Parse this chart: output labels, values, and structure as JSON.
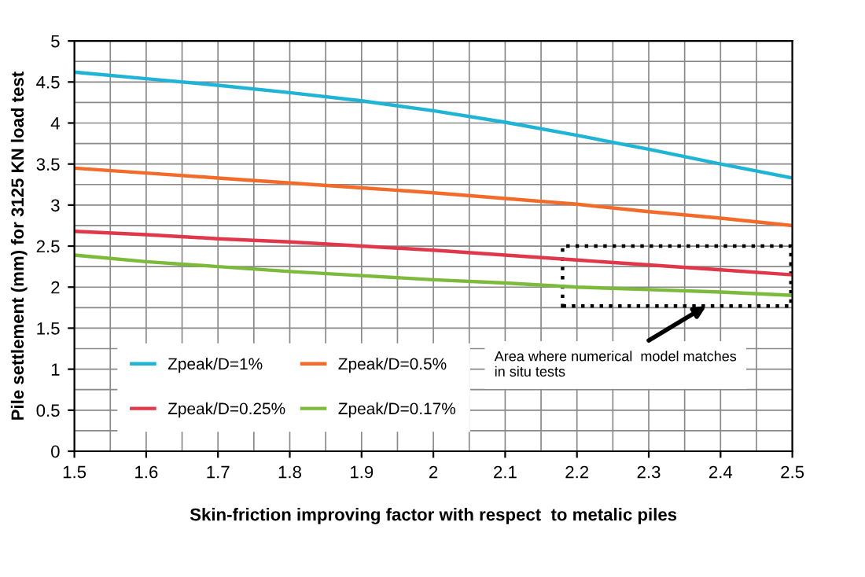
{
  "chart_data": {
    "type": "line",
    "xlabel": "Skin-friction improving factor with respect  to metalic piles",
    "ylabel": "Pile settlement (mm) for 3125 KN load test",
    "x": [
      1.5,
      1.6,
      1.7,
      1.8,
      1.9,
      2.0,
      2.1,
      2.2,
      2.3,
      2.4,
      2.5
    ],
    "series": [
      {
        "name": "Zpeak/D=1%",
        "color": "#1fb4d6",
        "values": [
          4.62,
          4.54,
          4.46,
          4.37,
          4.27,
          4.15,
          4.01,
          3.85,
          3.68,
          3.5,
          3.33
        ]
      },
      {
        "name": "Zpeak/D=0.5%",
        "color": "#f26b2a",
        "values": [
          3.45,
          3.39,
          3.33,
          3.27,
          3.21,
          3.15,
          3.08,
          3.01,
          2.92,
          2.84,
          2.75
        ]
      },
      {
        "name": "Zpeak/D=0.25%",
        "color": "#e0384a",
        "values": [
          2.68,
          2.64,
          2.59,
          2.55,
          2.5,
          2.45,
          2.39,
          2.33,
          2.27,
          2.21,
          2.15
        ]
      },
      {
        "name": "Zpeak/D=0.17%",
        "color": "#7cba3c",
        "values": [
          2.39,
          2.31,
          2.25,
          2.19,
          2.14,
          2.09,
          2.05,
          2.0,
          1.97,
          1.94,
          1.9
        ]
      }
    ],
    "xlim": [
      1.5,
      2.5
    ],
    "ylim": [
      0,
      5
    ],
    "xticks": [
      1.5,
      1.6,
      1.7,
      1.8,
      1.9,
      2,
      2.1,
      2.2,
      2.3,
      2.4,
      2.5
    ],
    "yticks": [
      0,
      0.5,
      1,
      1.5,
      2,
      2.5,
      3,
      3.5,
      4,
      4.5,
      5
    ],
    "grid": true,
    "legend": "bottom left",
    "marker": "none",
    "line_style": "solid",
    "annotations": [
      "Area where numerical  model matches\nin situ tests"
    ]
  }
}
